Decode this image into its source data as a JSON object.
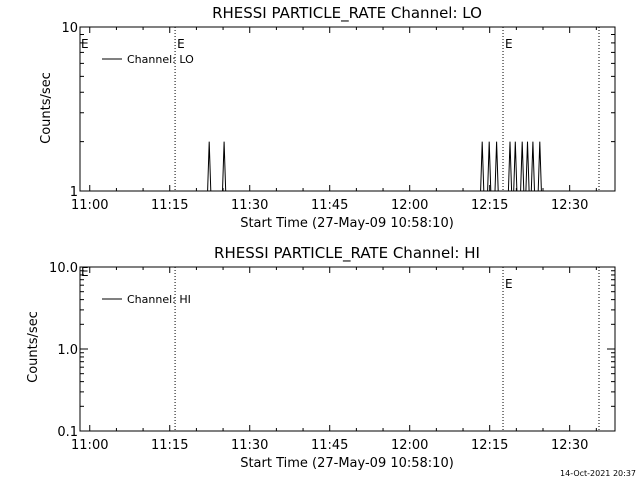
{
  "footer": {
    "timestamp": "14-Oct-2021 20:37"
  },
  "chart_data": [
    {
      "type": "line",
      "title": "RHESSI PARTICLE_RATE Channel: LO",
      "xlabel": "Start Time (27-May-09 10:58:10)",
      "ylabel": "Counts/sec",
      "yscale": "log",
      "ylim": [
        1,
        10
      ],
      "y_tick_labels": [
        "1",
        "10"
      ],
      "x_tick_labels": [
        "11:00",
        "11:15",
        "11:30",
        "11:45",
        "12:00",
        "12:15",
        "12:30"
      ],
      "xlim_minutes_after_1100": [
        -1.83,
        98.5
      ],
      "legend": {
        "label": "Channel: LO",
        "placement": "top-left"
      },
      "event_markers": [
        {
          "minutes_after_1100": 16.0,
          "label": "E"
        },
        {
          "minutes_after_1100": 77.5,
          "label": "E"
        },
        {
          "minutes_after_1100": 95.5,
          "label": ""
        }
      ],
      "edge_marker_label": "E",
      "series": [
        {
          "x_minutes_after_1100": [
            -1.83,
            22.1,
            22.1,
            22.4,
            22.4,
            22.7,
            22.7,
            24.9,
            24.9,
            25.2,
            25.2,
            25.5,
            25.5,
            73.3,
            73.3,
            73.6,
            73.6,
            73.9,
            73.9,
            74.6,
            74.6,
            74.9,
            74.9,
            75.2,
            75.2,
            76.0,
            76.0,
            76.3,
            76.3,
            76.6,
            76.6,
            78.5,
            78.5,
            78.8,
            78.8,
            79.1,
            79.1,
            79.5,
            79.5,
            79.8,
            79.8,
            80.1,
            80.1,
            80.8,
            80.8,
            81.1,
            81.1,
            81.4,
            81.4,
            81.8,
            81.8,
            82.1,
            82.1,
            82.4,
            82.4,
            82.8,
            82.8,
            83.1,
            83.1,
            83.4,
            83.4,
            84.1,
            84.1,
            84.4,
            84.4,
            84.7,
            84.7,
            98.5
          ],
          "y": [
            1,
            1,
            1,
            2,
            2,
            1,
            1,
            1,
            1,
            2,
            2,
            1,
            1,
            1,
            1,
            2,
            2,
            1,
            1,
            1,
            1,
            2,
            2,
            1,
            1,
            1,
            1,
            2,
            2,
            1,
            1,
            1,
            1,
            2,
            2,
            1,
            1,
            1,
            1,
            2,
            2,
            1,
            1,
            1,
            1,
            2,
            2,
            1,
            1,
            1,
            1,
            2,
            2,
            1,
            1,
            1,
            1,
            2,
            2,
            1,
            1,
            1,
            1,
            2,
            2,
            1,
            1,
            1
          ]
        }
      ]
    },
    {
      "type": "line",
      "title": "RHESSI PARTICLE_RATE Channel: HI",
      "xlabel": "Start Time (27-May-09 10:58:10)",
      "ylabel": "Counts/sec",
      "yscale": "log",
      "ylim": [
        0.1,
        10
      ],
      "y_tick_labels": [
        "0.1",
        "1.0",
        "10.0"
      ],
      "x_tick_labels": [
        "11:00",
        "11:15",
        "11:30",
        "11:45",
        "12:00",
        "12:15",
        "12:30"
      ],
      "xlim_minutes_after_1100": [
        -1.83,
        98.5
      ],
      "legend": {
        "label": "Channel: HI",
        "placement": "top-left"
      },
      "event_markers": [
        {
          "minutes_after_1100": 16.0,
          "label": ""
        },
        {
          "minutes_after_1100": 77.5,
          "label": "E"
        },
        {
          "minutes_after_1100": 95.5,
          "label": ""
        }
      ],
      "edge_marker_label": "E",
      "series": [
        {
          "x_minutes_after_1100": [],
          "y": []
        }
      ]
    }
  ]
}
